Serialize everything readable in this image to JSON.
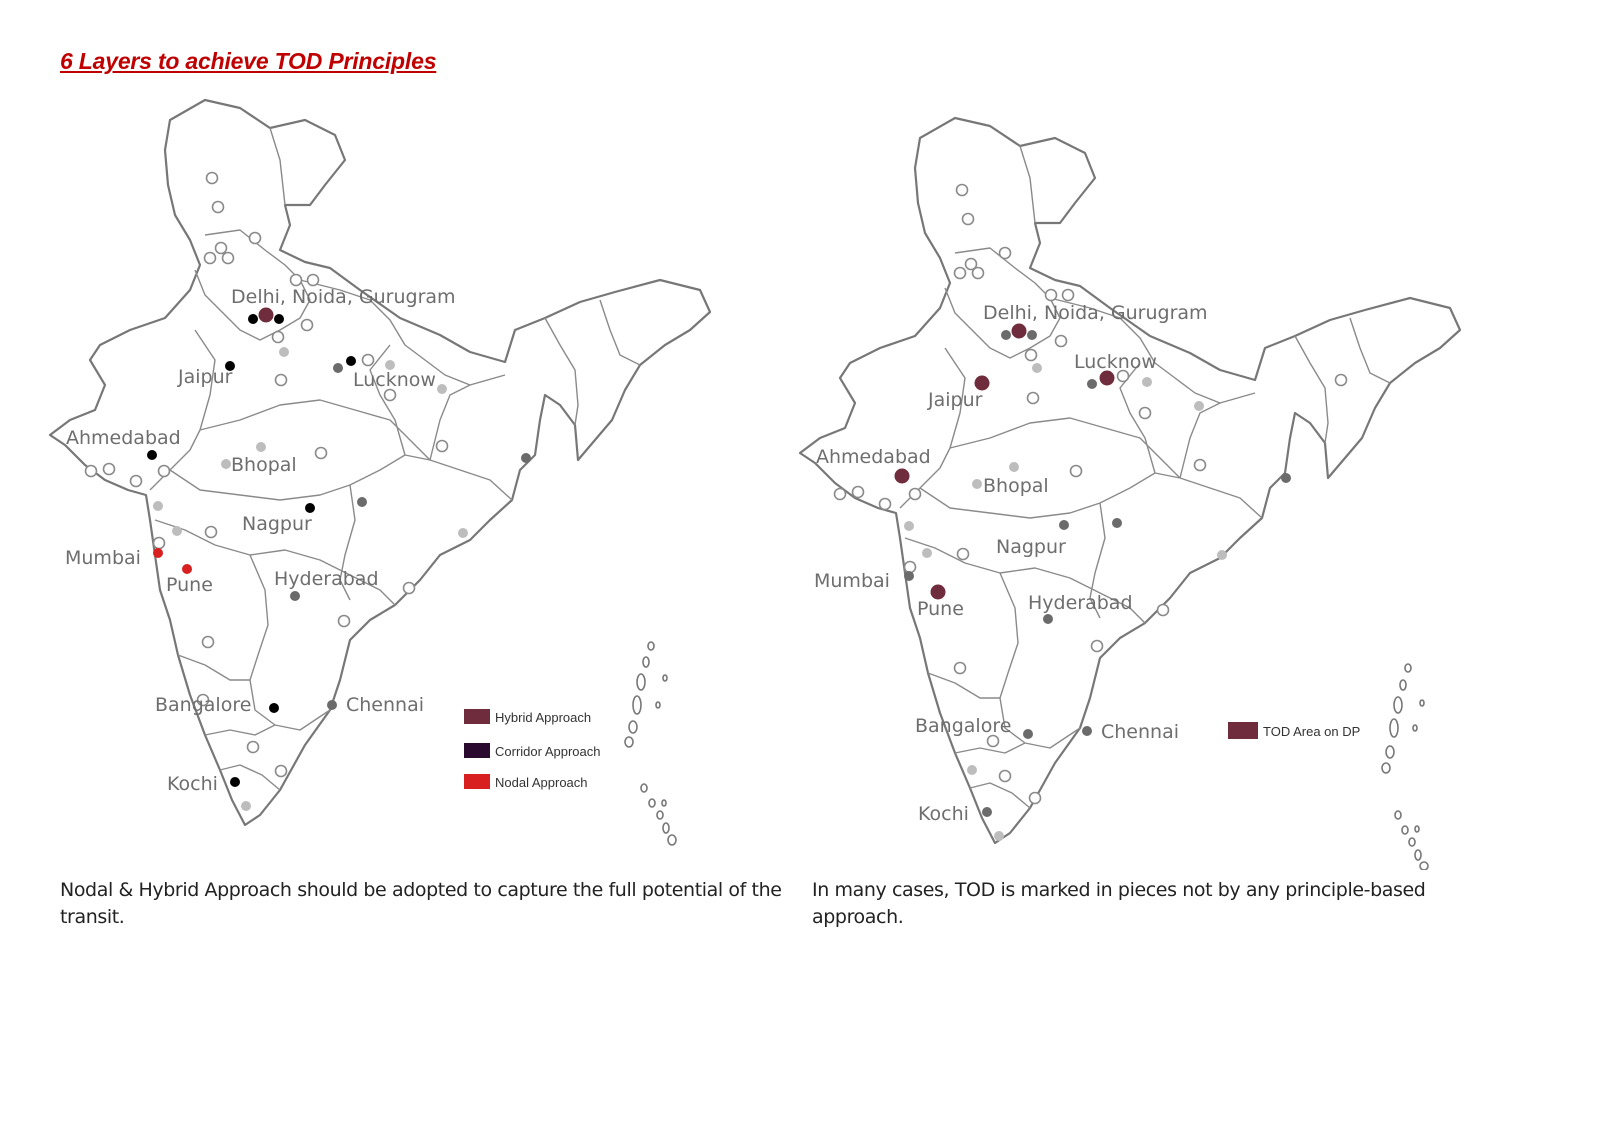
{
  "title": "6 Layers to achieve TOD Principles",
  "left_map": {
    "caption": "Nodal & Hybrid Approach should be adopted to capture the full potential of the transit.",
    "cities": {
      "delhi": "Delhi, Noida, Gurugram",
      "jaipur": "Jaipur",
      "lucknow": "Lucknow",
      "ahmedabad": "Ahmedabad",
      "bhopal": "Bhopal",
      "nagpur": "Nagpur",
      "mumbai": "Mumbai",
      "pune": "Pune",
      "hyderabad": "Hyderabad",
      "bangalore": "Bangalore",
      "chennai": "Chennai",
      "kochi": "Kochi"
    },
    "legend": [
      {
        "label": "Hybrid Approach",
        "color": "#6e2c3c"
      },
      {
        "label": "Corridor Approach",
        "color": "#2a0a2e"
      },
      {
        "label": "Nodal Approach",
        "color": "#d82020"
      }
    ]
  },
  "right_map": {
    "caption": "In many cases, TOD is marked in pieces not by any principle-based approach.",
    "cities": {
      "delhi": "Delhi, Noida, Gurugram",
      "jaipur": "Jaipur",
      "lucknow": "Lucknow",
      "ahmedabad": "Ahmedabad",
      "bhopal": "Bhopal",
      "nagpur": "Nagpur",
      "mumbai": "Mumbai",
      "pune": "Pune",
      "hyderabad": "Hyderabad",
      "bangalore": "Bangalore",
      "chennai": "Chennai",
      "kochi": "Kochi"
    },
    "legend": [
      {
        "label": "TOD Area on DP",
        "color": "#6e2c3c"
      }
    ]
  },
  "colors": {
    "title": "#c00000",
    "hybrid": "#6e2c3c",
    "corridor": "#000000",
    "nodal": "#d82020",
    "outline": "#777777"
  }
}
